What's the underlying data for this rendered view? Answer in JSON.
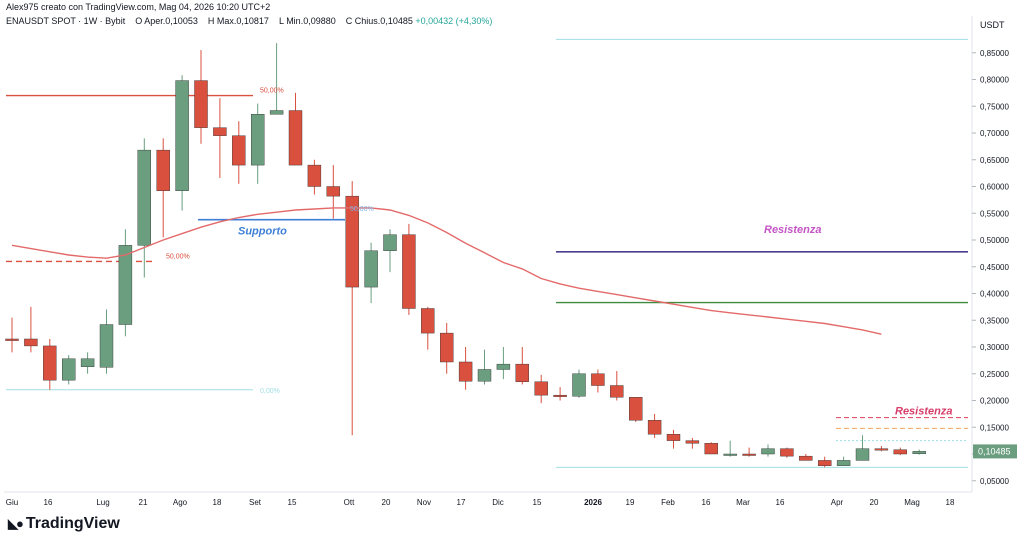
{
  "header": {
    "created_by": "Alex975 creato con TradingView.com, Mag 04, 2026 10:20 UTC+2"
  },
  "legend": {
    "symbol": "ENAUSDT SPOT · 1W · Bybit",
    "open_label": "O",
    "open_text": "Aper.0,10053",
    "high_label": "H",
    "high_text": "Max.0,10817",
    "low_label": "L",
    "low_text": "Min.0,09880",
    "close_label": "C",
    "close_text": "Chius.0,10485",
    "change_text": "+0,00432 (+4,30%)"
  },
  "unit": "USDT",
  "brand": "TradingView",
  "brand_icon": "tradingview-logo-icon",
  "colors": {
    "up": "#6a9e7f",
    "down": "#d9503f",
    "ma": "#e46a6a",
    "purple": "#4a3f8c",
    "green_line": "#3e8a3e",
    "support": "#3d7fd6",
    "resist_text": "#c455c6",
    "red_text": "#d63e6a",
    "cyan": "#9fdfe6",
    "orange": "#f2a65a"
  },
  "chart_data": {
    "type": "candlestick",
    "symbol": "ENAUSDT SPOT",
    "timeframe": "1W",
    "exchange": "Bybit",
    "y_unit": "USDT",
    "ylim": [
      0.03,
      0.89
    ],
    "y_ticks": [
      "0,85000",
      "0,80000",
      "0,75000",
      "0,70000",
      "0,65000",
      "0,60000",
      "0,55000",
      "0,50000",
      "0,45000",
      "0,40000",
      "0,35000",
      "0,30000",
      "0,25000",
      "0,20000",
      "0,15000",
      "0,10000",
      "0,05000"
    ],
    "x_ticks": [
      "Giu",
      "16",
      "Lug",
      "21",
      "Ago",
      "18",
      "Set",
      "15",
      "Ott",
      "20",
      "Nov",
      "17",
      "Dic",
      "15",
      "2026",
      "19",
      "Feb",
      "16",
      "Mar",
      "16",
      "Apr",
      "20",
      "Mag",
      "18"
    ],
    "last_price_label": "0,10485",
    "candles": [
      {
        "o": 0.315,
        "h": 0.355,
        "l": 0.29,
        "c": 0.312
      },
      {
        "o": 0.315,
        "h": 0.375,
        "l": 0.29,
        "c": 0.302
      },
      {
        "o": 0.302,
        "h": 0.315,
        "l": 0.22,
        "c": 0.238
      },
      {
        "o": 0.238,
        "h": 0.285,
        "l": 0.23,
        "c": 0.278
      },
      {
        "o": 0.263,
        "h": 0.29,
        "l": 0.25,
        "c": 0.278
      },
      {
        "o": 0.262,
        "h": 0.37,
        "l": 0.25,
        "c": 0.342
      },
      {
        "o": 0.342,
        "h": 0.52,
        "l": 0.32,
        "c": 0.49
      },
      {
        "o": 0.49,
        "h": 0.69,
        "l": 0.43,
        "c": 0.668
      },
      {
        "o": 0.668,
        "h": 0.69,
        "l": 0.505,
        "c": 0.592
      },
      {
        "o": 0.592,
        "h": 0.808,
        "l": 0.555,
        "c": 0.798
      },
      {
        "o": 0.798,
        "h": 0.855,
        "l": 0.68,
        "c": 0.71
      },
      {
        "o": 0.71,
        "h": 0.765,
        "l": 0.616,
        "c": 0.695
      },
      {
        "o": 0.695,
        "h": 0.722,
        "l": 0.605,
        "c": 0.64
      },
      {
        "o": 0.64,
        "h": 0.755,
        "l": 0.605,
        "c": 0.735
      },
      {
        "o": 0.735,
        "h": 0.868,
        "l": 0.735,
        "c": 0.742
      },
      {
        "o": 0.742,
        "h": 0.775,
        "l": 0.64,
        "c": 0.64
      },
      {
        "o": 0.64,
        "h": 0.65,
        "l": 0.585,
        "c": 0.6
      },
      {
        "o": 0.6,
        "h": 0.64,
        "l": 0.54,
        "c": 0.582
      },
      {
        "o": 0.582,
        "h": 0.61,
        "l": 0.135,
        "c": 0.412
      },
      {
        "o": 0.412,
        "h": 0.495,
        "l": 0.382,
        "c": 0.48
      },
      {
        "o": 0.48,
        "h": 0.52,
        "l": 0.44,
        "c": 0.51
      },
      {
        "o": 0.51,
        "h": 0.53,
        "l": 0.36,
        "c": 0.372
      },
      {
        "o": 0.372,
        "h": 0.375,
        "l": 0.295,
        "c": 0.326
      },
      {
        "o": 0.326,
        "h": 0.345,
        "l": 0.25,
        "c": 0.272
      },
      {
        "o": 0.272,
        "h": 0.3,
        "l": 0.22,
        "c": 0.236
      },
      {
        "o": 0.236,
        "h": 0.295,
        "l": 0.23,
        "c": 0.258
      },
      {
        "o": 0.258,
        "h": 0.3,
        "l": 0.24,
        "c": 0.268
      },
      {
        "o": 0.268,
        "h": 0.3,
        "l": 0.23,
        "c": 0.235
      },
      {
        "o": 0.235,
        "h": 0.248,
        "l": 0.195,
        "c": 0.21
      },
      {
        "o": 0.21,
        "h": 0.225,
        "l": 0.2,
        "c": 0.208
      },
      {
        "o": 0.208,
        "h": 0.258,
        "l": 0.205,
        "c": 0.25
      },
      {
        "o": 0.25,
        "h": 0.258,
        "l": 0.215,
        "c": 0.228
      },
      {
        "o": 0.228,
        "h": 0.255,
        "l": 0.2,
        "c": 0.206
      },
      {
        "o": 0.206,
        "h": 0.206,
        "l": 0.16,
        "c": 0.163
      },
      {
        "o": 0.163,
        "h": 0.175,
        "l": 0.13,
        "c": 0.137
      },
      {
        "o": 0.137,
        "h": 0.145,
        "l": 0.11,
        "c": 0.125
      },
      {
        "o": 0.125,
        "h": 0.13,
        "l": 0.11,
        "c": 0.12
      },
      {
        "o": 0.12,
        "h": 0.122,
        "l": 0.1,
        "c": 0.1
      },
      {
        "o": 0.1,
        "h": 0.125,
        "l": 0.095,
        "c": 0.1
      },
      {
        "o": 0.1,
        "h": 0.112,
        "l": 0.095,
        "c": 0.098
      },
      {
        "o": 0.1,
        "h": 0.118,
        "l": 0.095,
        "c": 0.11
      },
      {
        "o": 0.11,
        "h": 0.112,
        "l": 0.093,
        "c": 0.096
      },
      {
        "o": 0.096,
        "h": 0.1,
        "l": 0.088,
        "c": 0.088
      },
      {
        "o": 0.088,
        "h": 0.095,
        "l": 0.075,
        "c": 0.078
      },
      {
        "o": 0.078,
        "h": 0.095,
        "l": 0.078,
        "c": 0.088
      },
      {
        "o": 0.088,
        "h": 0.135,
        "l": 0.088,
        "c": 0.11
      },
      {
        "o": 0.11,
        "h": 0.115,
        "l": 0.105,
        "c": 0.108
      },
      {
        "o": 0.108,
        "h": 0.112,
        "l": 0.098,
        "c": 0.1
      },
      {
        "o": 0.1005,
        "h": 0.1082,
        "l": 0.0988,
        "c": 0.1049
      }
    ],
    "ma_line": [
      0.49,
      0.484,
      0.478,
      0.472,
      0.468,
      0.466,
      0.472,
      0.486,
      0.5,
      0.512,
      0.524,
      0.534,
      0.542,
      0.548,
      0.552,
      0.556,
      0.558,
      0.56,
      0.56,
      0.56,
      0.556,
      0.546,
      0.532,
      0.514,
      0.494,
      0.476,
      0.458,
      0.446,
      0.428,
      0.418,
      0.41,
      0.404,
      0.398,
      0.392,
      0.386,
      0.38,
      0.374,
      0.368,
      0.364,
      0.36,
      0.356,
      0.352,
      0.348,
      0.344,
      0.338,
      0.332,
      0.324
    ],
    "annotations": [
      {
        "text": "Supporto",
        "y": 0.538,
        "color": "support"
      },
      {
        "text": "Resistenza",
        "y": 0.478,
        "color": "purple"
      },
      {
        "text": "Resistenza",
        "y": 0.168,
        "color": "red"
      },
      {
        "text": "50,00%",
        "y": 0.77
      },
      {
        "text": "50,00%",
        "y": 0.46
      },
      {
        "text": "50,00%",
        "y": 0.56
      },
      {
        "text": "0,00%",
        "y": 0.22
      }
    ]
  },
  "labels": {
    "supporto": "Supporto",
    "resistenza_top": "Resistenza",
    "resistenza_bottom": "Resistenza",
    "fib_50_a": "50,00%",
    "fib_50_b": "50,00%",
    "fib_50_c": "50,00%",
    "fib_0": "0,00%"
  }
}
